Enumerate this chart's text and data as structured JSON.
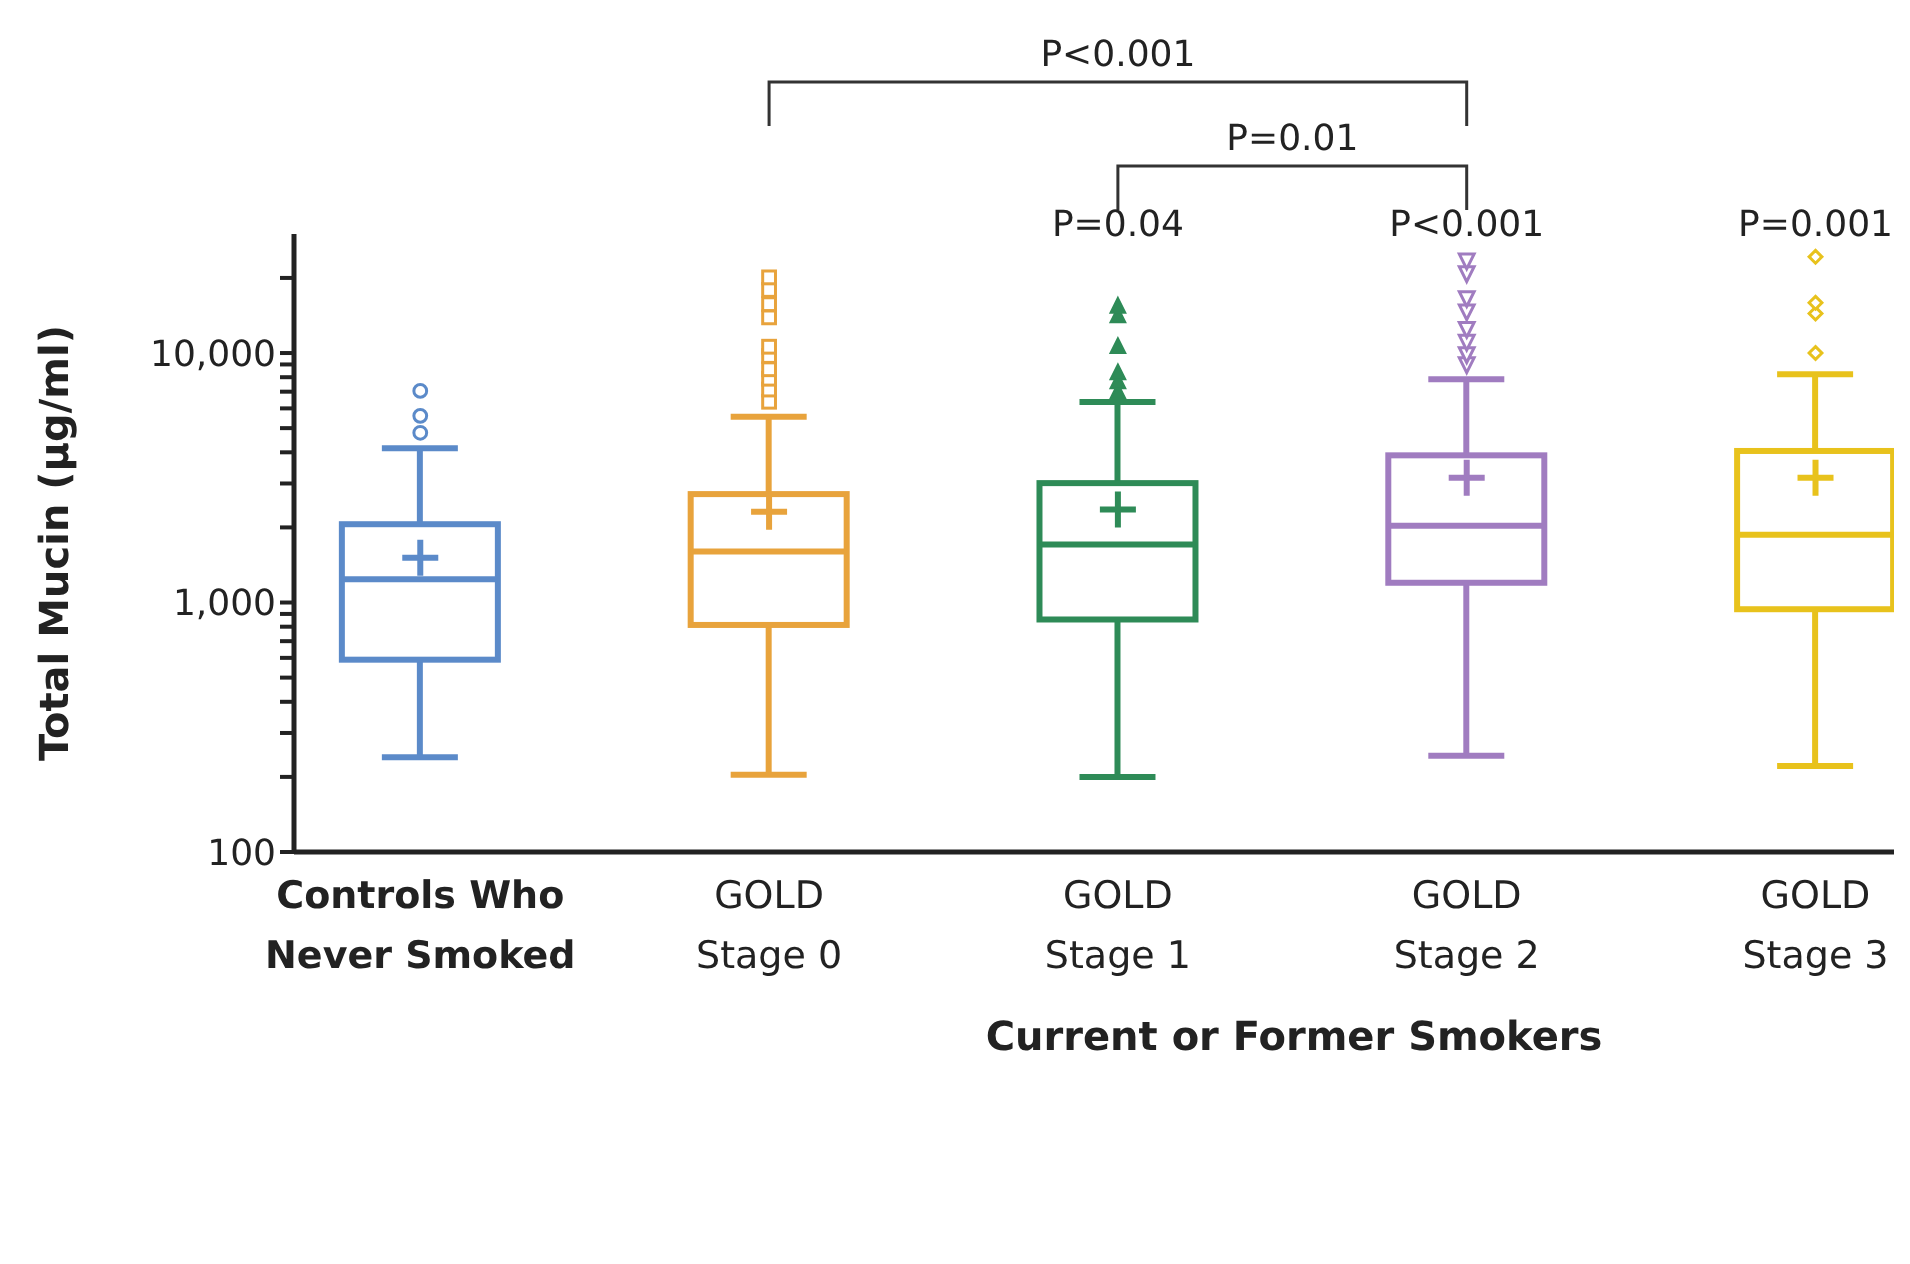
{
  "chart_data": {
    "type": "box",
    "ylabel": "Total Mucin (μg/ml)",
    "xlabel": "Current or Former Smokers",
    "log": true,
    "categories": [
      "Controls Who\nNever Smoked",
      "GOLD\nStage 0",
      "GOLD\nStage 1",
      "GOLD\nStage 2",
      "GOLD\nStage 3"
    ],
    "ylim": [
      100,
      30000
    ],
    "yticks": [
      100,
      {
        "value": 200,
        "label": null
      },
      {
        "value": 300,
        "label": null
      },
      {
        "value": 400,
        "label": null
      },
      {
        "value": 500,
        "label": null
      },
      {
        "value": 600,
        "label": null
      },
      {
        "value": 700,
        "label": null
      },
      {
        "value": 800,
        "label": null
      },
      {
        "value": 900,
        "label": null
      },
      {
        "value": 1000,
        "label": "1,000"
      },
      {
        "value": 2000,
        "label": null
      },
      {
        "value": 3000,
        "label": null
      },
      {
        "value": 4000,
        "label": null
      },
      {
        "value": 5000,
        "label": null
      },
      {
        "value": 6000,
        "label": null
      },
      {
        "value": 7000,
        "label": null
      },
      {
        "value": 8000,
        "label": null
      },
      {
        "value": 9000,
        "label": null
      },
      {
        "value": 10000,
        "label": "10,000"
      },
      {
        "value": 20000,
        "label": null
      }
    ],
    "series": [
      {
        "type": "box",
        "color": "#5b8ac9",
        "marker": "circle",
        "boxes": [
          {
            "low": 240,
            "q1": 590,
            "median": 1240,
            "q3": 2060,
            "high": 4150,
            "mean": 1510,
            "outliers": [
              4790,
              5600,
              7050
            ]
          },
          null,
          null,
          null,
          null
        ]
      },
      {
        "type": "box",
        "color": "#e8a33c",
        "marker": "square",
        "boxes": [
          null,
          {
            "low": 204,
            "q1": 813,
            "median": 1600,
            "q3": 2720,
            "high": 5560,
            "mean": 2310,
            "outliers": [
              6380,
              7140,
              7890,
              8610,
              9730,
              10600,
              13900,
              15700,
              17900,
              20100
            ]
          },
          null,
          null,
          null
        ]
      },
      {
        "type": "box",
        "color": "#2e8b57",
        "marker": "triangle",
        "boxes": [
          null,
          null,
          {
            "low": 200,
            "q1": 855,
            "median": 1710,
            "q3": 3010,
            "high": 6360,
            "mean": 2360,
            "outliers": [
              6980,
              7660,
              8330,
              10600,
              14100,
              15400
            ]
          },
          null,
          null
        ]
      },
      {
        "type": "box",
        "color": "#a07cc0",
        "marker": "triangle-down",
        "boxes": [
          null,
          null,
          null,
          {
            "low": 243,
            "q1": 1200,
            "median": 2030,
            "q3": 3890,
            "high": 7850,
            "mean": 3160,
            "outliers": [
              9020,
              9900,
              11100,
              12500,
              14700,
              16600,
              20900,
              23500
            ]
          },
          null
        ]
      },
      {
        "type": "box",
        "color": "#e8c21c",
        "marker": "diamond",
        "boxes": [
          null,
          null,
          null,
          null,
          {
            "low": 221,
            "q1": 940,
            "median": 1870,
            "q3": 4050,
            "high": 8220,
            "mean": 3160,
            "outliers": [
              10000,
              14400,
              15900,
              24300
            ]
          }
        ]
      }
    ],
    "annotations": [
      "P<0.001",
      "P=0.01",
      "P=0.04",
      "P<0.001",
      "P=0.001"
    ]
  }
}
